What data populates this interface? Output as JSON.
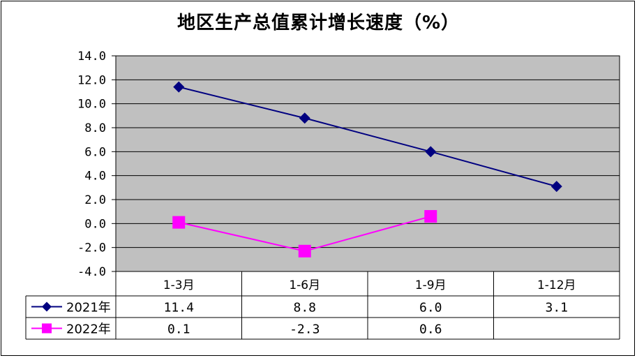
{
  "chart_data": {
    "type": "line",
    "title": "地区生产总值累计增长速度（%）",
    "categories": [
      "1-3月",
      "1-6月",
      "1-9月",
      "1-12月"
    ],
    "series": [
      {
        "name": "2021年",
        "values": [
          11.4,
          8.8,
          6.0,
          3.1
        ],
        "labels": [
          "11.4",
          "8.8",
          "6.0",
          "3.1"
        ],
        "color": "#000080",
        "marker": "diamond"
      },
      {
        "name": "2022年",
        "values": [
          0.1,
          -2.3,
          0.6,
          null
        ],
        "labels": [
          "0.1",
          "-2.3",
          "0.6",
          ""
        ],
        "color": "#FF00FF",
        "marker": "square"
      }
    ],
    "ylim": [
      -4.0,
      14.0
    ],
    "yticks": [
      "14.0",
      "12.0",
      "10.0",
      "8.0",
      "6.0",
      "4.0",
      "2.0",
      "0.0",
      "-2.0",
      "-4.0"
    ],
    "grid": true,
    "plot_background": "#C0C0C0",
    "legend": "data-table-left",
    "xlabel": "",
    "ylabel": ""
  }
}
